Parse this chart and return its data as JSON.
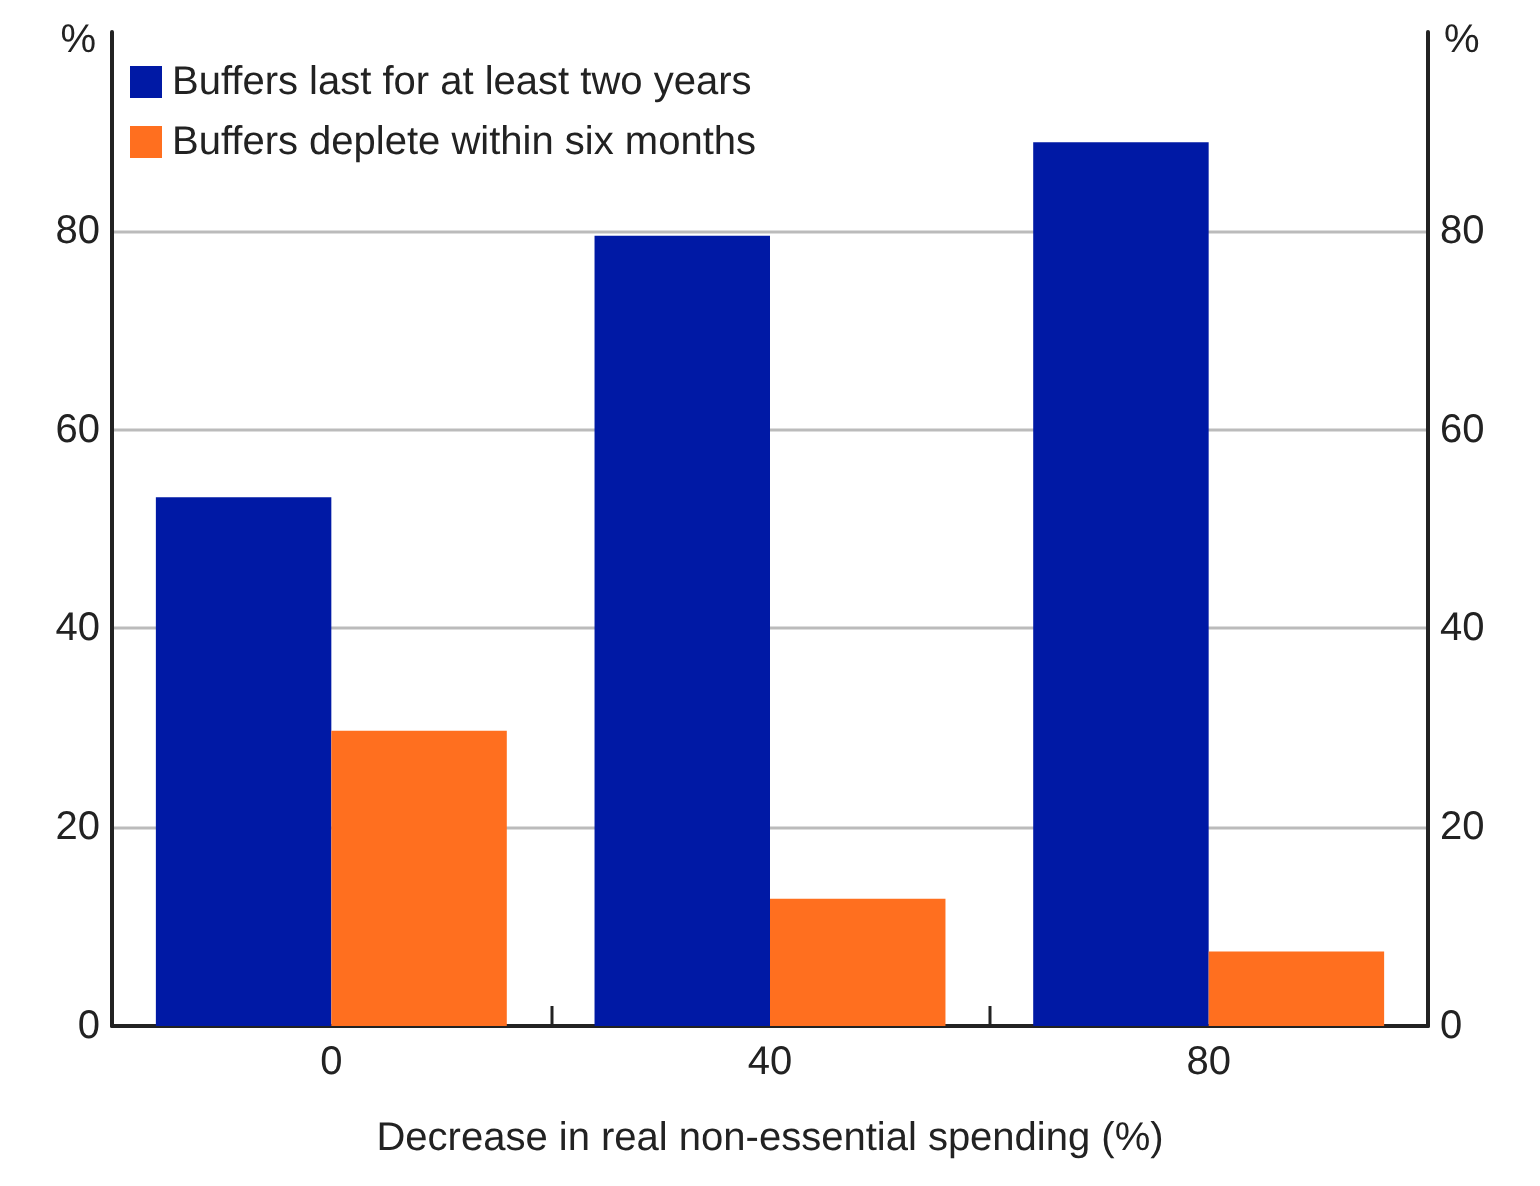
{
  "chart_data": {
    "type": "bar",
    "xlabel": "Decrease in real non-essential spending (%)",
    "ylabel": "%",
    "y2label": "%",
    "categories": [
      "0",
      "40",
      "80"
    ],
    "series": [
      {
        "name": "Buffers last for at least two years",
        "color": "#0019a5",
        "values": [
          53.2,
          79.5,
          88.9
        ]
      },
      {
        "name": "Buffers deplete within six months",
        "color": "#ff6f1f",
        "values": [
          29.7,
          12.8,
          7.5
        ]
      }
    ],
    "ylim": [
      0,
      100
    ],
    "yticks": [
      0,
      20,
      40,
      60,
      80
    ],
    "y2lim": [
      0,
      100
    ],
    "y2ticks": [
      0,
      20,
      40,
      60,
      80
    ],
    "grid": "y",
    "legend": "top left"
  }
}
